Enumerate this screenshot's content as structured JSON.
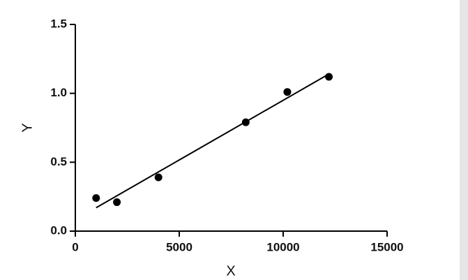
{
  "chart_data": {
    "type": "scatter",
    "xlabel": "X",
    "ylabel": "Y",
    "x": [
      1000,
      2000,
      4000,
      8200,
      10200,
      12200
    ],
    "values": [
      0.24,
      0.21,
      0.39,
      0.79,
      1.01,
      1.12
    ],
    "color": "#000000",
    "fit": {
      "x": [
        1000,
        12200
      ],
      "values": [
        0.17,
        1.14
      ]
    },
    "xlim": [
      0,
      15000
    ],
    "xticks": [
      0,
      5000,
      10000,
      15000
    ],
    "ylim": [
      0,
      1.5
    ],
    "yticks": [
      {
        "value": 0,
        "label": "0.0"
      },
      0.5,
      {
        "value": 1,
        "label": "1.0"
      },
      1.5
    ]
  }
}
